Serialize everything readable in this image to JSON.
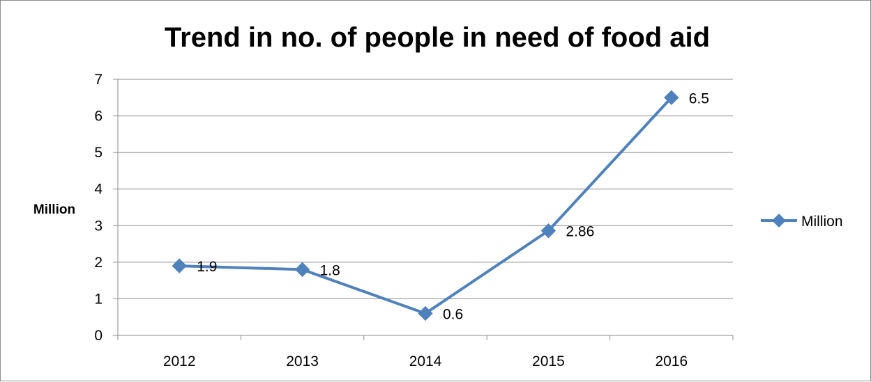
{
  "colors": {
    "series": "#4f81bd",
    "grid": "#8c8c8c",
    "axis": "#8c8c8c"
  },
  "chart_data": {
    "type": "line",
    "title": "Trend in no. of people in need of food aid",
    "xlabel": "",
    "ylabel": "Million",
    "categories": [
      "2012",
      "2013",
      "2014",
      "2015",
      "2016"
    ],
    "series": [
      {
        "name": "Million",
        "values": [
          1.9,
          1.8,
          0.6,
          2.86,
          6.5
        ],
        "labels": [
          "1.9",
          "1.8",
          "0.6",
          "2.86",
          "6.5"
        ],
        "marker": "diamond"
      }
    ],
    "ylim": [
      0,
      7
    ],
    "yticks": [
      "0",
      "1",
      "2",
      "3",
      "4",
      "5",
      "6",
      "7"
    ],
    "grid": true,
    "legend": "right"
  }
}
